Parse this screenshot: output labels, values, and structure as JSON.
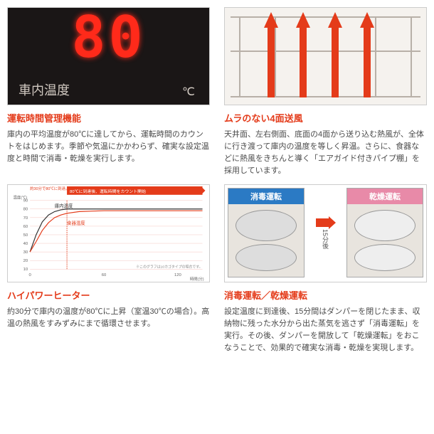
{
  "colors": {
    "accent": "#e43b1a",
    "text": "#4a4a4a",
    "dark_bg": "#1a1616",
    "seg_red": "#ff2a1a",
    "blue_label": "#2b7ac4",
    "pink_label": "#e88aa8",
    "grey_line": "#b8b0a8"
  },
  "panel1": {
    "display_value": "80",
    "label": "車内温度",
    "unit": "℃",
    "title": "運転時間管理機能",
    "desc": "庫内の平均温度が80℃に達してから、運転時間のカウントをはじめます。季節や気温にかかわらず、確実な設定温度と時間で消毒・乾燥を実行します。"
  },
  "panel2": {
    "title": "ムラのない4面送風",
    "desc": "天井面、左右側面、底面の4面から送り込む熱風が、全体に行き渡って庫内の温度を等しく昇温。さらに、食器などに熱風をきちんと導く「エアガイド付きパイプ棚」を採用しています。"
  },
  "panel3": {
    "title": "ハイパワーヒーター",
    "desc": "約30分で庫内の温度が80℃に上昇（室温30℃の場合）。高温の熱風をすみずみにまで循環させます。",
    "chart": {
      "note_top_left": "約30分で80℃に到達。",
      "note_arrow": "80℃に到達後、運転時間をカウント開始",
      "y_label": "温度(℃)",
      "x_label": "時間(分)",
      "y_ticks": [
        10,
        20,
        30,
        40,
        50,
        60,
        70,
        80,
        90
      ],
      "x_ticks": [
        0,
        60,
        120
      ],
      "series1_label": "庫内温度",
      "series1_color": "#333333",
      "series2_label": "食器温度",
      "series2_color": "#e43b1a",
      "footnote": "※このグラフは10カゴタイプの場合です。",
      "series1": [
        [
          0,
          30
        ],
        [
          5,
          50
        ],
        [
          10,
          65
        ],
        [
          15,
          73
        ],
        [
          20,
          77
        ],
        [
          25,
          79
        ],
        [
          30,
          80
        ],
        [
          60,
          80
        ],
        [
          90,
          80
        ],
        [
          120,
          80
        ],
        [
          140,
          80
        ]
      ],
      "series2": [
        [
          0,
          30
        ],
        [
          5,
          42
        ],
        [
          10,
          55
        ],
        [
          15,
          64
        ],
        [
          20,
          70
        ],
        [
          25,
          73
        ],
        [
          30,
          75
        ],
        [
          40,
          77
        ],
        [
          60,
          78
        ],
        [
          90,
          78
        ],
        [
          120,
          78
        ],
        [
          140,
          78
        ]
      ]
    }
  },
  "panel4": {
    "title": "消毒運転／乾燥運転",
    "desc": "設定温度に到達後、15分間はダンパーを閉じたまま、収納物に残った水分から出た蒸気を逃さず「消毒運転」を実行。その後、ダンパーを開放して「乾燥運転」をおこなうことで、効果的で確実な消毒・乾燥を実現します。",
    "left_label": "消毒運転",
    "right_label": "乾燥運転",
    "arrow_label": "15分後"
  }
}
